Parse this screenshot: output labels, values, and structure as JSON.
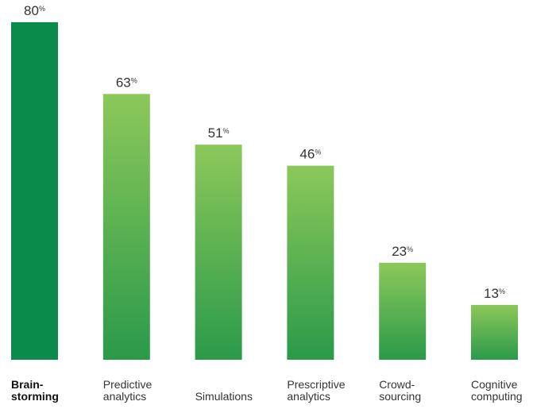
{
  "chart_data": {
    "type": "bar",
    "categories": [
      [
        "Brain-",
        "storming"
      ],
      [
        "Predictive",
        "analytics"
      ],
      [
        "Simulations"
      ],
      [
        "Prescriptive",
        "analytics"
      ],
      [
        "Crowd-",
        "sourcing"
      ],
      [
        "Cognitive",
        "computing"
      ]
    ],
    "values": [
      80,
      63,
      51,
      46,
      23,
      13
    ],
    "value_suffix": "%",
    "highlight_index": 0,
    "ylim": [
      0,
      80
    ],
    "grid": false,
    "legend": "none",
    "colors": {
      "highlight": "#0a8a4b",
      "gradient_top": "#8cc85a",
      "gradient_bottom": "#2a9a4a",
      "text": "#333333"
    }
  }
}
